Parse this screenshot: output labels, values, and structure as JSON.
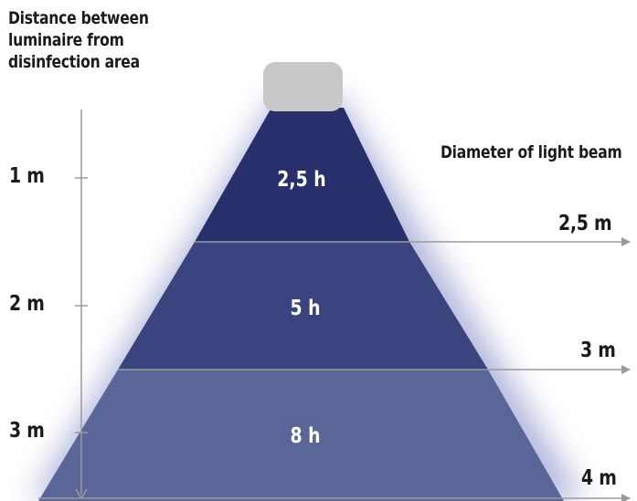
{
  "left_axis": {
    "title_lines": [
      "Distance between",
      "luminaire from",
      "disinfection area"
    ],
    "ticks": [
      "1 m",
      "2 m",
      "3 m"
    ]
  },
  "right_axis": {
    "title": "Diameter of light beam",
    "labels": [
      "2,5 m",
      "3 m",
      "4 m"
    ]
  },
  "zones": [
    {
      "duration": "2,5 h"
    },
    {
      "duration": "5 h"
    },
    {
      "duration": "8 h"
    }
  ],
  "colors": {
    "zone_top": "#27306b",
    "zone_middle": "#3a4580",
    "zone_bottom": "#5b6698",
    "glow": "#8d92c9",
    "luminaire": "#c8c8c8",
    "axis_lines": "#9a9a9a",
    "text": "#1b1b1b"
  }
}
